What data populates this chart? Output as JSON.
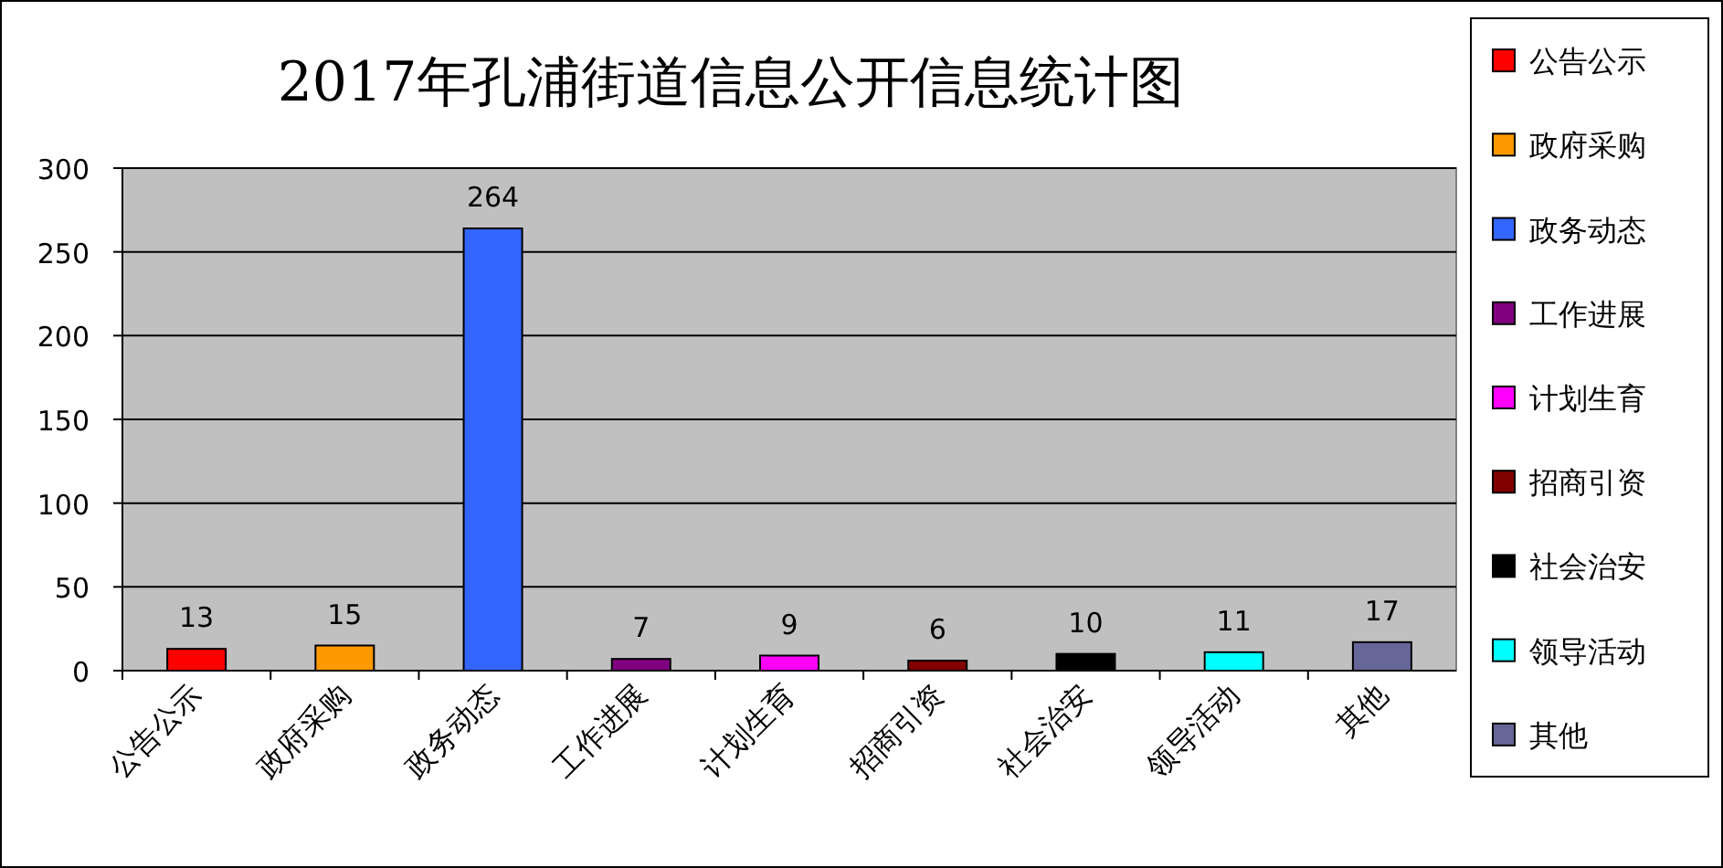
{
  "chart_data": {
    "type": "bar",
    "title": "2017年孔浦街道信息公开信息统计图",
    "categories": [
      "公告公示",
      "政府采购",
      "政务动态",
      "工作进展",
      "计划生育",
      "招商引资",
      "社会治安",
      "领导活动",
      "其他"
    ],
    "stacked": true,
    "series": [
      {
        "name": "公告公示",
        "color": "#ff0000",
        "values": [
          13,
          null,
          null,
          null,
          null,
          null,
          null,
          null,
          null
        ]
      },
      {
        "name": "政府采购",
        "color": "#ff9900",
        "values": [
          null,
          15,
          null,
          null,
          null,
          null,
          null,
          null,
          null
        ]
      },
      {
        "name": "政务动态",
        "color": "#3366ff",
        "values": [
          null,
          null,
          264,
          null,
          null,
          null,
          null,
          null,
          null
        ]
      },
      {
        "name": "工作进展",
        "color": "#800080",
        "values": [
          null,
          null,
          null,
          7,
          null,
          null,
          null,
          null,
          null
        ]
      },
      {
        "name": "计划生育",
        "color": "#ff00ff",
        "values": [
          null,
          null,
          null,
          null,
          9,
          null,
          null,
          null,
          null
        ]
      },
      {
        "name": "招商引资",
        "color": "#800000",
        "values": [
          null,
          null,
          null,
          null,
          null,
          6,
          null,
          null,
          null
        ]
      },
      {
        "name": "社会治安",
        "color": "#000000",
        "values": [
          null,
          null,
          null,
          null,
          null,
          null,
          10,
          null,
          null
        ]
      },
      {
        "name": "领导活动",
        "color": "#00ffff",
        "values": [
          null,
          null,
          null,
          null,
          null,
          null,
          null,
          11,
          null
        ]
      },
      {
        "name": "其他",
        "color": "#666699",
        "values": [
          null,
          null,
          null,
          null,
          null,
          null,
          null,
          null,
          17
        ]
      }
    ],
    "ylim": [
      0,
      300
    ],
    "yticks": [
      0,
      50,
      100,
      150,
      200,
      250,
      300
    ],
    "grid": "y",
    "data_labels": true,
    "legend": "right"
  }
}
